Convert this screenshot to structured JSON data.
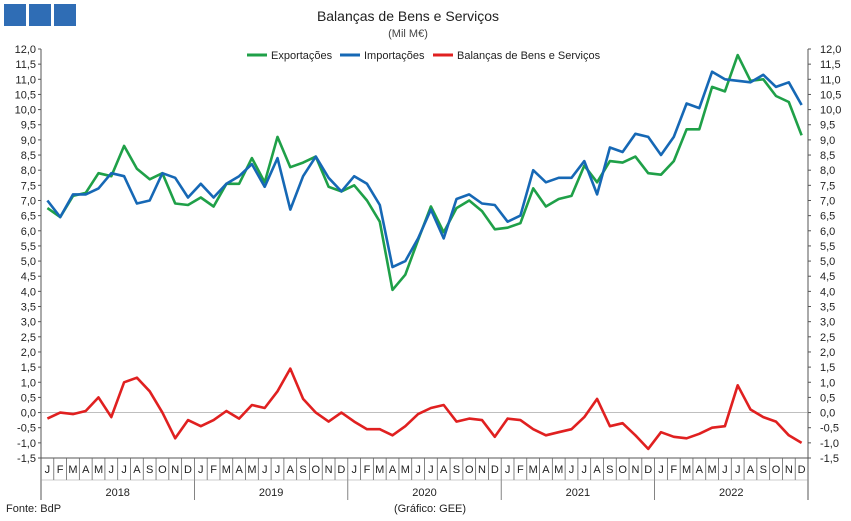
{
  "chart_data": {
    "type": "line",
    "title": "Balanças de Bens e Serviços",
    "subtitle": "(Mil M€)",
    "source": "Fonte: BdP",
    "credit": "(Gráfico: GEE)",
    "ylim": [
      -1.5,
      12.0
    ],
    "yticks": [
      "12,0",
      "11,5",
      "11,0",
      "10,5",
      "10,0",
      "9,5",
      "9,0",
      "8,5",
      "8,0",
      "7,5",
      "7,0",
      "6,5",
      "6,0",
      "5,5",
      "5,0",
      "4,5",
      "4,0",
      "3,5",
      "3,0",
      "2,5",
      "2,0",
      "1,5",
      "1,0",
      "0,5",
      "0,0",
      "-0,5",
      "-1,0",
      "-1,5"
    ],
    "months": [
      "J",
      "F",
      "M",
      "A",
      "M",
      "J",
      "J",
      "A",
      "S",
      "O",
      "N",
      "D"
    ],
    "years": [
      "2018",
      "2019",
      "2020",
      "2021",
      "2022"
    ],
    "legend_position": "top-center",
    "series": [
      {
        "name": "Exportações",
        "color": "#1fa048",
        "values": [
          6.75,
          6.45,
          7.15,
          7.25,
          7.9,
          7.8,
          8.8,
          8.05,
          7.7,
          7.9,
          6.9,
          6.85,
          7.1,
          6.8,
          7.55,
          7.55,
          8.4,
          7.6,
          9.1,
          8.1,
          8.25,
          8.45,
          7.45,
          7.3,
          7.5,
          7.0,
          6.3,
          4.05,
          4.55,
          5.7,
          6.8,
          5.95,
          6.75,
          7.0,
          6.65,
          6.05,
          6.1,
          6.25,
          7.4,
          6.8,
          7.05,
          7.15,
          8.15,
          7.6,
          8.3,
          8.25,
          8.45,
          7.9,
          7.85,
          8.3,
          9.35,
          9.35,
          10.75,
          10.6,
          11.8,
          10.95,
          11.0,
          10.45,
          10.25,
          9.15
        ]
      },
      {
        "name": "Importações",
        "color": "#1668b5",
        "values": [
          7.0,
          6.45,
          7.2,
          7.2,
          7.4,
          7.9,
          7.8,
          6.9,
          7.0,
          7.9,
          7.75,
          7.1,
          7.55,
          7.1,
          7.55,
          7.8,
          8.2,
          7.45,
          8.4,
          6.7,
          7.8,
          8.45,
          7.75,
          7.3,
          7.8,
          7.55,
          6.85,
          4.8,
          5.0,
          5.75,
          6.7,
          5.75,
          7.05,
          7.2,
          6.9,
          6.85,
          6.3,
          6.5,
          8.0,
          7.6,
          7.75,
          7.75,
          8.3,
          7.2,
          8.75,
          8.6,
          9.2,
          9.1,
          8.5,
          9.1,
          10.2,
          10.05,
          11.25,
          11.0,
          10.95,
          10.9,
          11.15,
          10.75,
          10.9,
          10.15
        ]
      },
      {
        "name": "Balanças de Bens e Serviços",
        "color": "#e02020",
        "values": [
          -0.2,
          0.0,
          -0.05,
          0.05,
          0.5,
          -0.15,
          1.0,
          1.15,
          0.7,
          0.0,
          -0.85,
          -0.25,
          -0.45,
          -0.25,
          0.05,
          -0.2,
          0.25,
          0.15,
          0.7,
          1.45,
          0.45,
          0.0,
          -0.3,
          0.0,
          -0.3,
          -0.55,
          -0.55,
          -0.75,
          -0.45,
          -0.05,
          0.15,
          0.25,
          -0.3,
          -0.2,
          -0.25,
          -0.8,
          -0.2,
          -0.25,
          -0.55,
          -0.75,
          -0.65,
          -0.55,
          -0.15,
          0.45,
          -0.45,
          -0.35,
          -0.75,
          -1.2,
          -0.65,
          -0.8,
          -0.85,
          -0.7,
          -0.5,
          -0.45,
          0.9,
          0.1,
          -0.15,
          -0.3,
          -0.75,
          -1.0
        ]
      }
    ]
  }
}
